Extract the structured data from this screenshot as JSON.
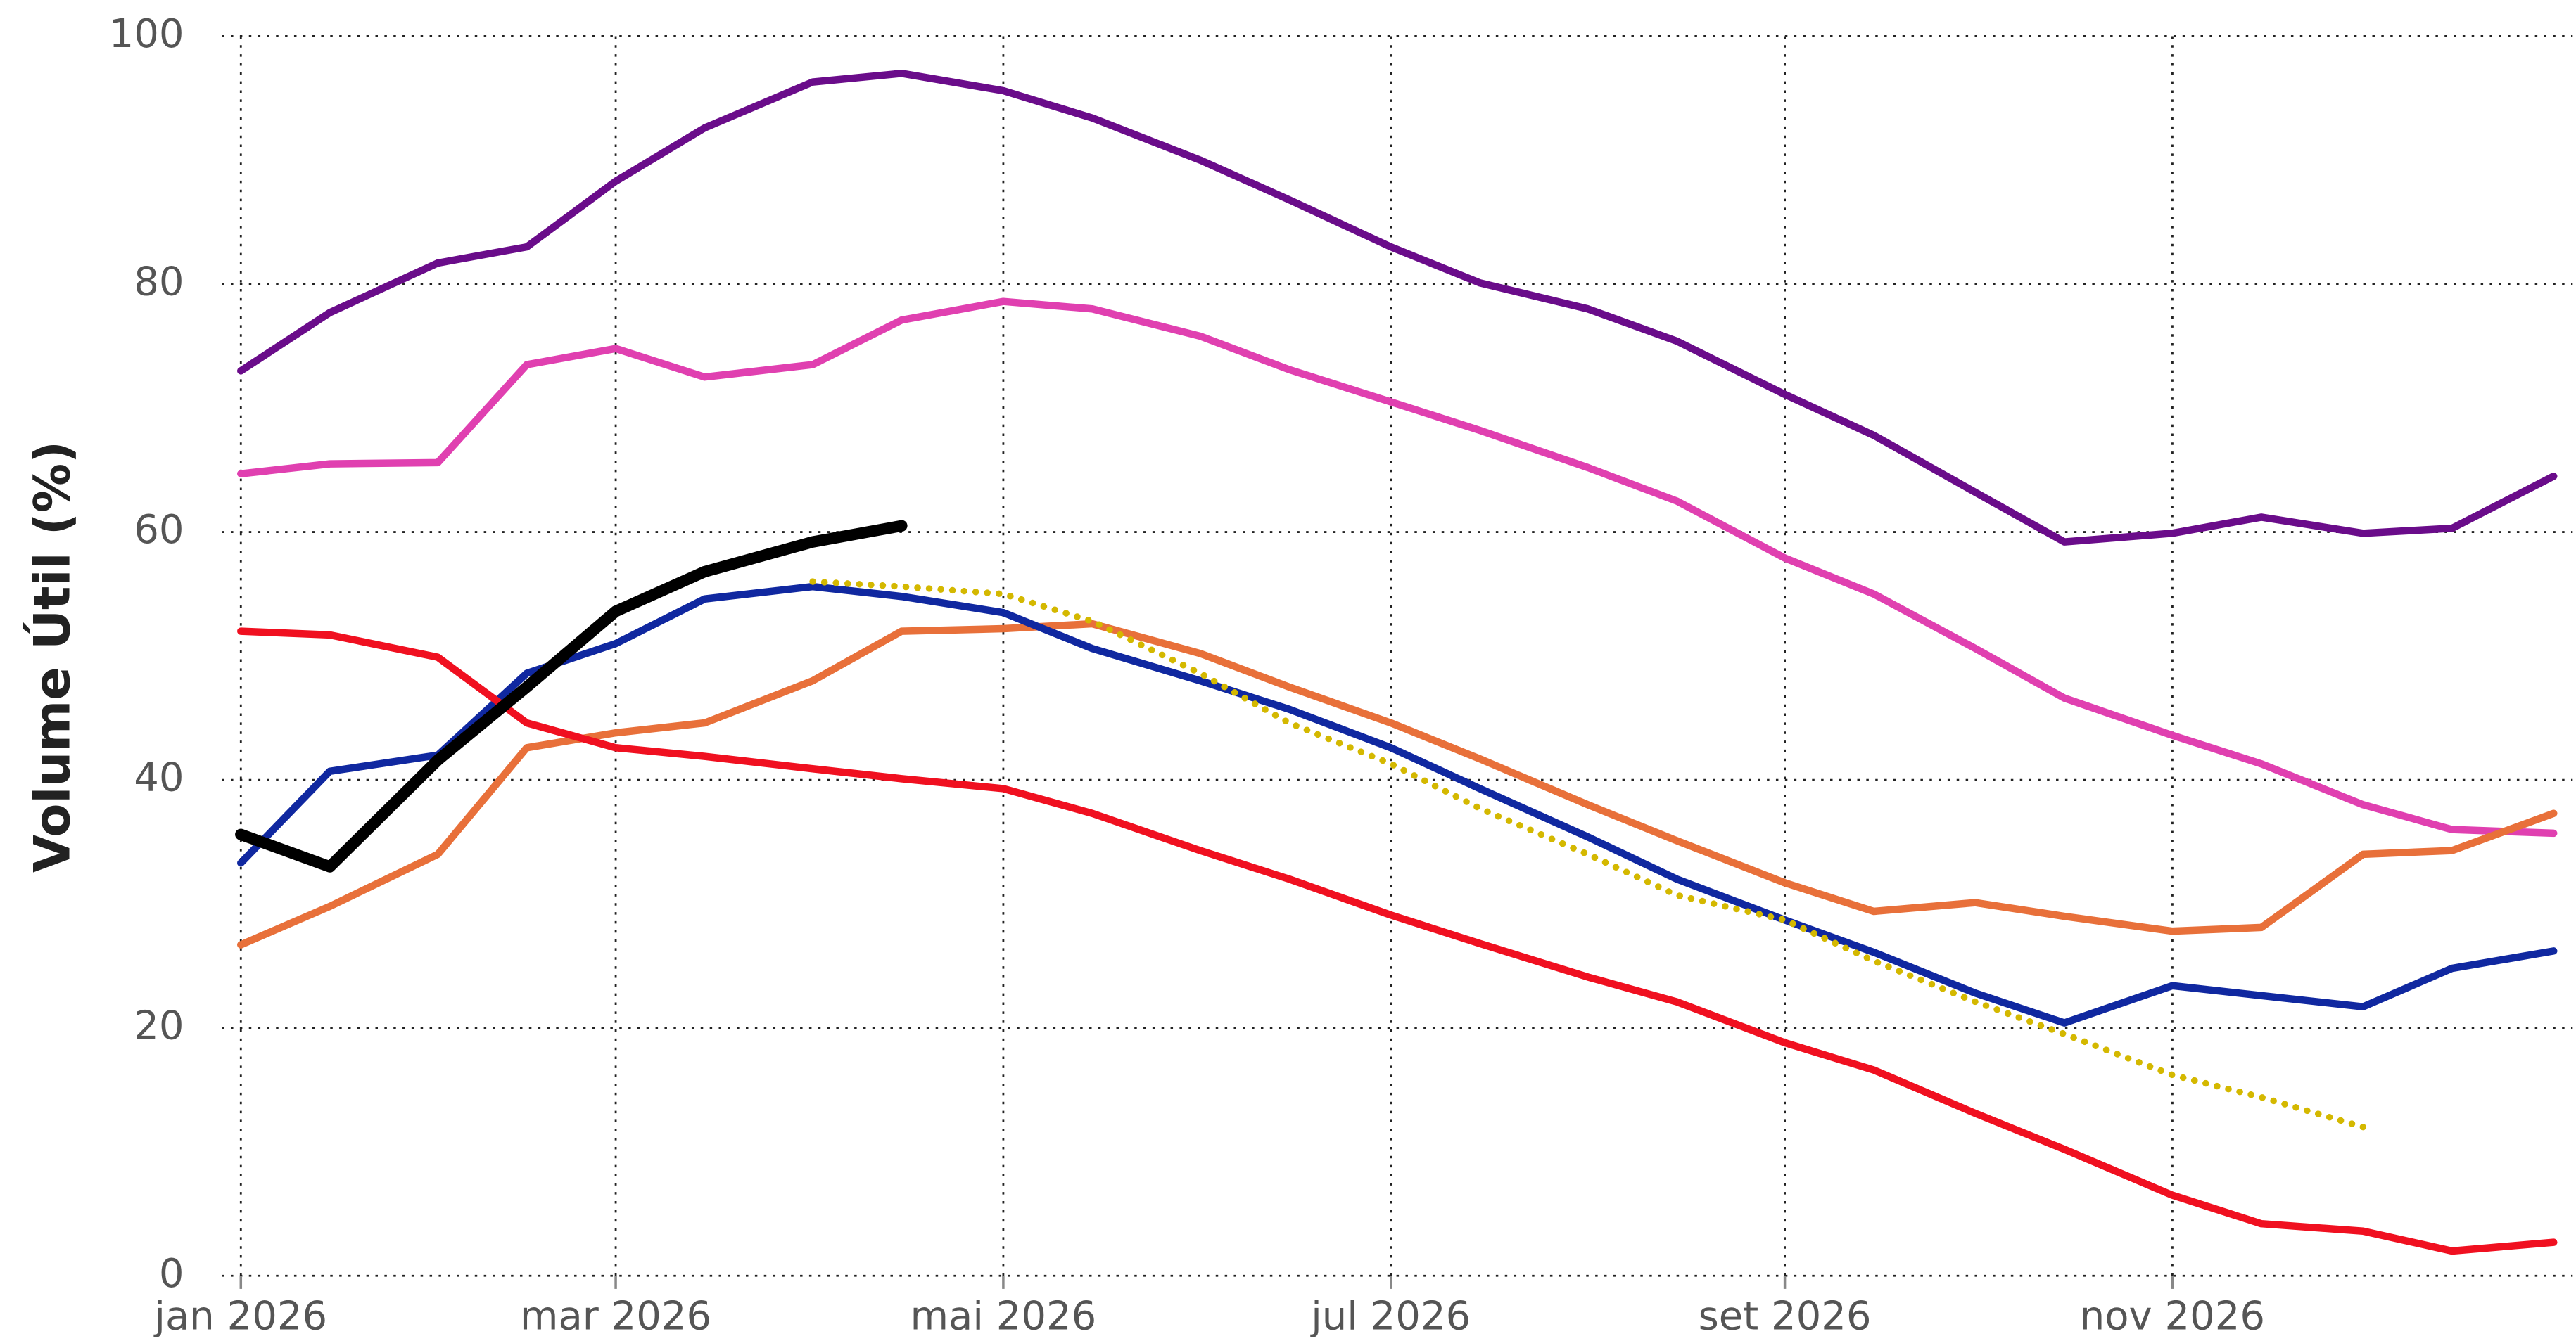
{
  "chart_data": {
    "type": "line",
    "y_label": "Volume Útil (%)",
    "x": [
      "2026-01-01",
      "2026-01-15",
      "2026-02-01",
      "2026-02-15",
      "2026-03-01",
      "2026-03-15",
      "2026-04-01",
      "2026-04-15",
      "2026-05-01",
      "2026-05-15",
      "2026-06-01",
      "2026-06-15",
      "2026-07-01",
      "2026-07-15",
      "2026-08-01",
      "2026-08-15",
      "2026-09-01",
      "2026-09-15",
      "2026-10-01",
      "2026-10-15",
      "2026-11-01",
      "2026-11-15",
      "2026-12-01",
      "2026-12-15",
      "2026-12-31"
    ],
    "xlim": [
      "2025-12-29",
      "2027-01-03"
    ],
    "xticks": [
      {
        "value": "2026-01-01",
        "label": "jan 2026"
      },
      {
        "value": "2026-03-01",
        "label": "mar 2026"
      },
      {
        "value": "2026-05-01",
        "label": "mai 2026"
      },
      {
        "value": "2026-07-01",
        "label": "jul 2026"
      },
      {
        "value": "2026-09-01",
        "label": "set 2026"
      },
      {
        "value": "2026-11-01",
        "label": "nov 2026"
      }
    ],
    "ylim": [
      0,
      100
    ],
    "yticks": [
      0,
      20,
      40,
      60,
      80,
      100
    ],
    "grid": true,
    "series": [
      {
        "color": "#6a0c8a",
        "style": "solid",
        "values": [
          73,
          77.7,
          81.7,
          83,
          88.3,
          92.6,
          96.3,
          97,
          95.6,
          93.4,
          90,
          86.8,
          83,
          80.1,
          78,
          75.4,
          71.1,
          67.8,
          63.2,
          59.2,
          59.9,
          61.2,
          59.9,
          60.3,
          64.5
        ]
      },
      {
        "color": "#e040b0",
        "style": "solid",
        "values": [
          64.7,
          65.5,
          65.6,
          73.5,
          74.8,
          72.5,
          73.5,
          77.1,
          78.6,
          78,
          75.8,
          73.1,
          70.5,
          68.2,
          65.2,
          62.5,
          57.9,
          55,
          50.6,
          46.6,
          43.6,
          41.3,
          38,
          36,
          35.7
        ]
      },
      {
        "color": "#e8703a",
        "style": "solid",
        "values": [
          26.7,
          29.8,
          34,
          42.6,
          43.8,
          44.6,
          48,
          52,
          52.2,
          52.6,
          50.2,
          47.5,
          44.6,
          41.7,
          38,
          35.1,
          31.7,
          29.4,
          30.1,
          29,
          27.8,
          28.1,
          34,
          34.3,
          37.3
        ]
      },
      {
        "color": "#1028a0",
        "style": "solid",
        "values": [
          33.3,
          40.7,
          42,
          48.6,
          51,
          54.6,
          55.6,
          54.8,
          53.5,
          50.6,
          48,
          45.7,
          42.6,
          39.3,
          35.4,
          32,
          28.7,
          26.1,
          22.8,
          20.4,
          23.4,
          22.6,
          21.7,
          24.8,
          26.2
        ]
      },
      {
        "color": "#f01020",
        "style": "solid",
        "values": [
          52,
          51.7,
          49.9,
          44.6,
          42.6,
          41.9,
          40.9,
          40.1,
          39.3,
          37.3,
          34.3,
          32,
          29.1,
          26.8,
          24.1,
          22.1,
          18.8,
          16.6,
          13.1,
          10.2,
          6.5,
          4.2,
          3.6,
          2,
          2.7
        ]
      },
      {
        "color": "#d4b800",
        "style": "dotted",
        "values": [
          null,
          null,
          null,
          null,
          null,
          null,
          56,
          55.6,
          55,
          52.8,
          48.6,
          44.6,
          41.3,
          37.7,
          34,
          30.7,
          28.7,
          25.4,
          22.1,
          19.5,
          16.2,
          14.4,
          12,
          null,
          null
        ]
      },
      {
        "color": "#000000",
        "style": "solid",
        "width": "bold",
        "values": [
          35.6,
          33,
          41.6,
          47.5,
          53.6,
          56.8,
          59.2,
          60.5,
          null,
          null,
          null,
          null,
          null,
          null,
          null,
          null,
          null,
          null,
          null,
          null,
          null,
          null,
          null,
          null,
          null
        ]
      }
    ]
  }
}
